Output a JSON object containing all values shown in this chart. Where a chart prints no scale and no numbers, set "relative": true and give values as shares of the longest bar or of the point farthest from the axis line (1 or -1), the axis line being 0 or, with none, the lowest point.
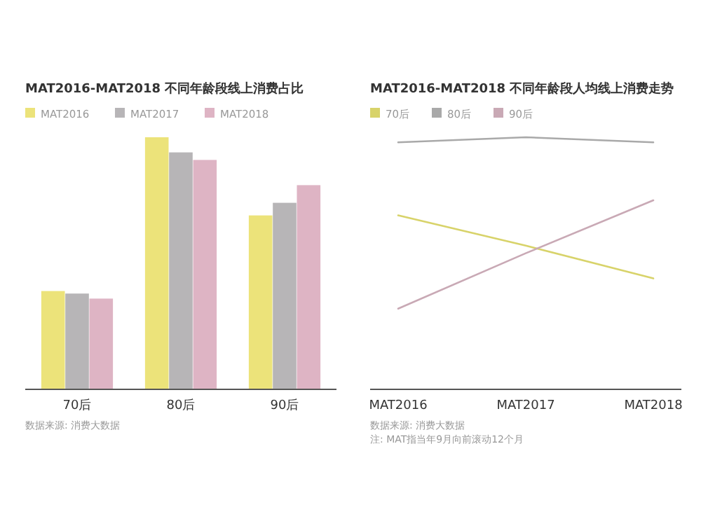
{
  "chart_data": [
    {
      "type": "bar",
      "title": "MAT2016-MAT2018 不同年龄段线上消费占比",
      "categories": [
        "70后",
        "80后",
        "90后"
      ],
      "relative": true,
      "legend": "top left",
      "series": [
        {
          "name": "MAT2016",
          "color": "#ece37a",
          "values": [
            0.39,
            1,
            0.69
          ]
        },
        {
          "name": "MAT2017",
          "color": "#b7b5b7",
          "values": [
            0.38,
            0.94,
            0.74
          ]
        },
        {
          "name": "MAT2018",
          "color": "#deb4c4",
          "values": [
            0.36,
            0.91,
            0.81
          ]
        }
      ],
      "annotations": [
        "数据来源: 消费大数据"
      ]
    },
    {
      "type": "line",
      "title": "MAT2016-MAT2018 不同年龄段人均线上消费走势",
      "categories": [
        "MAT2016",
        "MAT2017",
        "MAT2018"
      ],
      "relative": true,
      "legend": "top left",
      "marker": "none",
      "series": [
        {
          "name": "70后",
          "color": "#d8d36a",
          "values": [
            0.69,
            0.57,
            0.44
          ]
        },
        {
          "name": "80后",
          "color": "#a9a9a9",
          "values": [
            0.98,
            1,
            0.98
          ]
        },
        {
          "name": "90后",
          "color": "#c9a9b5",
          "values": [
            0.32,
            0.54,
            0.75
          ]
        }
      ],
      "annotations": [
        "数据来源: 消费大数据",
        "注: MAT指当年9月向前滚动12个月"
      ]
    }
  ]
}
